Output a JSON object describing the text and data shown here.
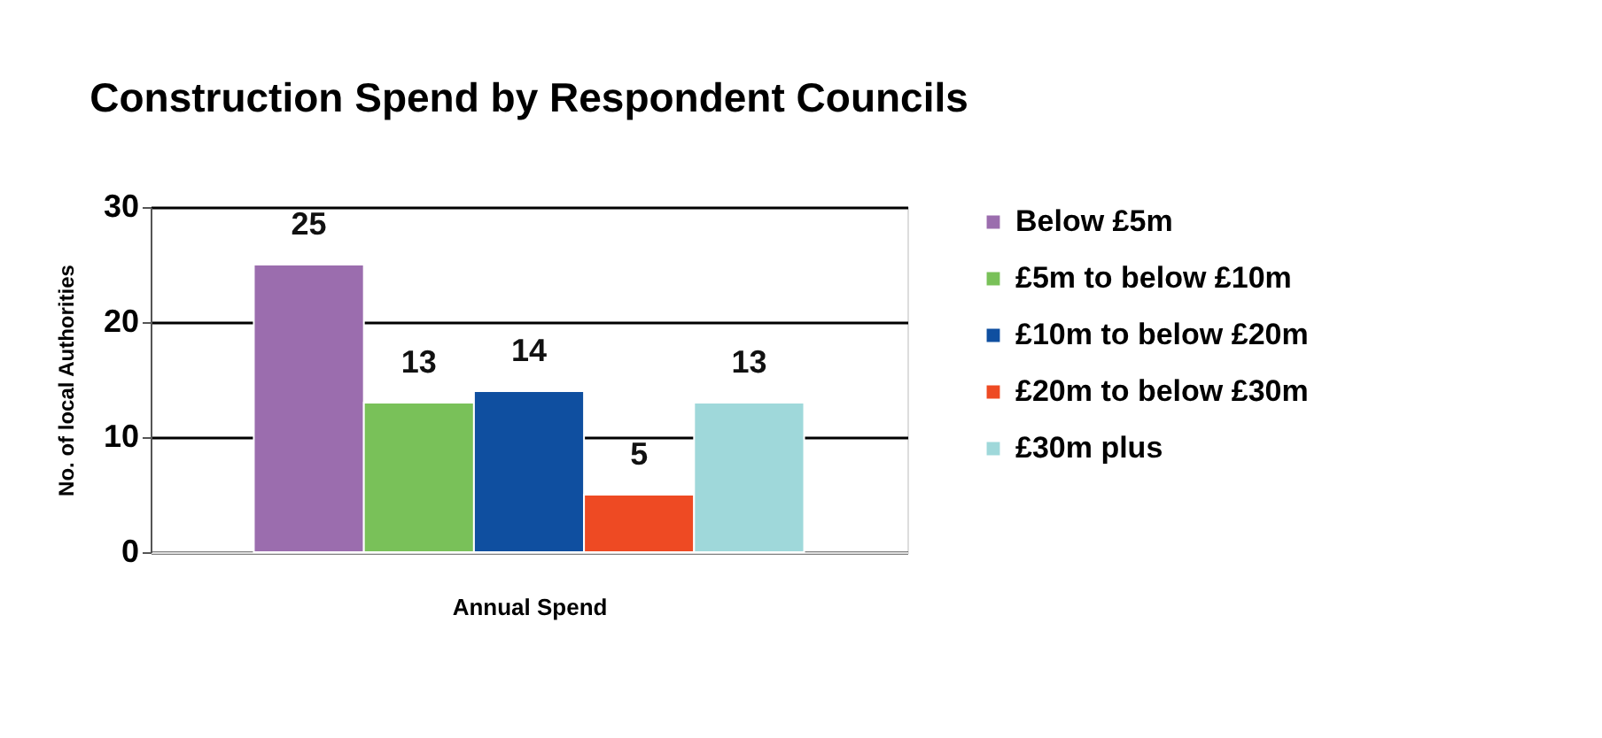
{
  "chart_data": {
    "type": "bar",
    "title": "Construction Spend by Respondent Councils",
    "xlabel": "Annual Spend",
    "ylabel": "No. of local Authorities",
    "categories": [
      null
    ],
    "series": [
      {
        "name": "Below £5m",
        "color": "#9b6dae",
        "values": [
          25
        ]
      },
      {
        "name": "£5m to below £10m",
        "color": "#79c159",
        "values": [
          13
        ]
      },
      {
        "name": "£10m to below £20m",
        "color": "#0f4fa0",
        "values": [
          14
        ]
      },
      {
        "name": "£20m to below £30m",
        "color": "#ee4a23",
        "values": [
          5
        ]
      },
      {
        "name": "£30m plus",
        "color": "#9fd8da",
        "values": [
          13
        ]
      }
    ],
    "ylim": [
      0,
      30
    ],
    "yticks": [
      0,
      10,
      20,
      30
    ],
    "grid": "y",
    "legend": "right",
    "data_labels": true
  }
}
